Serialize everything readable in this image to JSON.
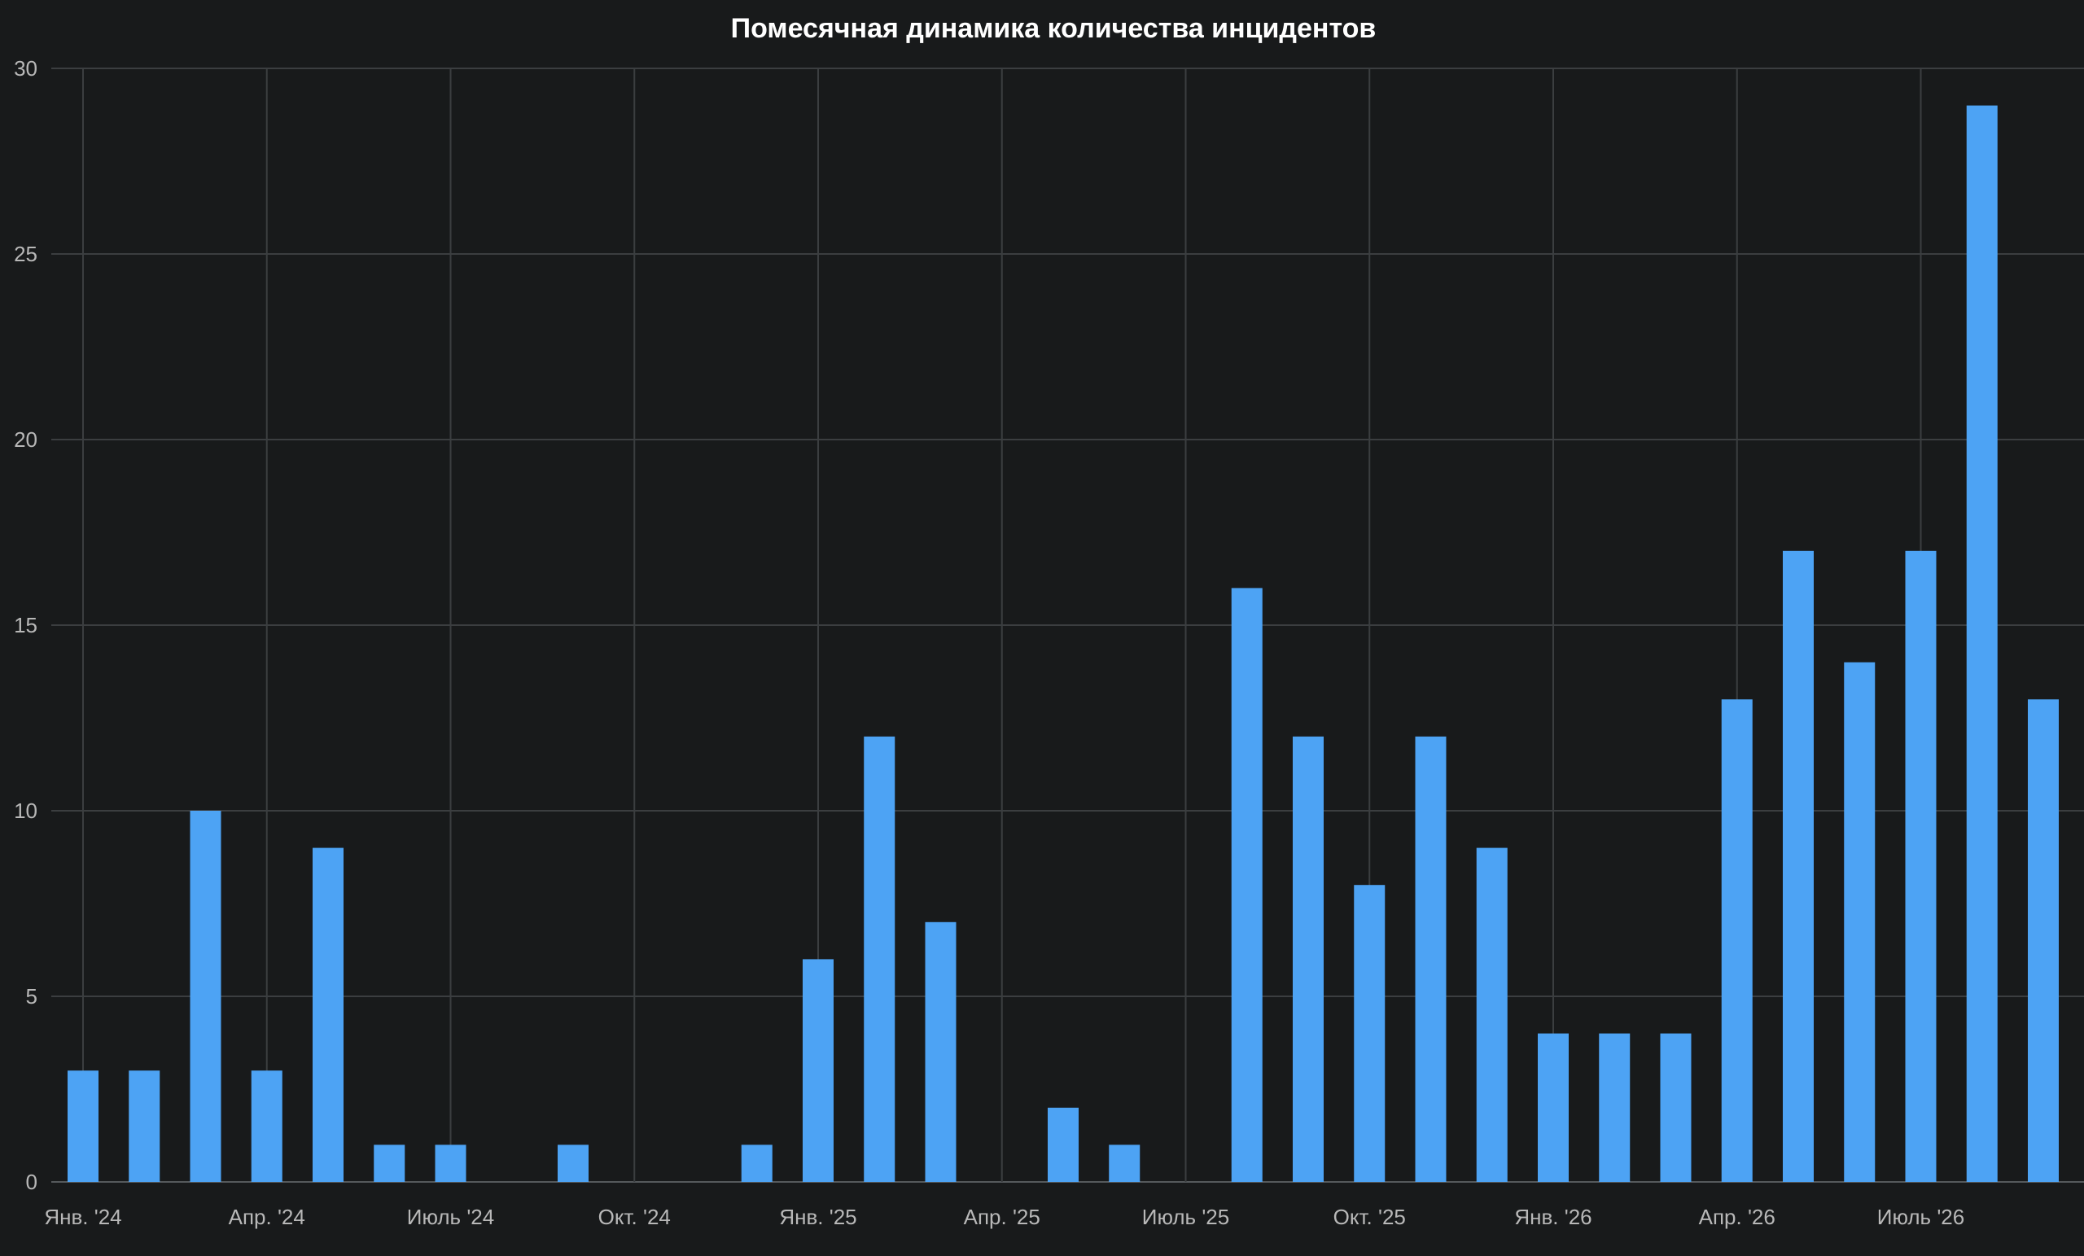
{
  "chart_data": {
    "type": "bar",
    "title": "Помесячная динамика количества инцидентов",
    "xlabel": "",
    "ylabel": "",
    "ylim": [
      0,
      30
    ],
    "y_ticks": [
      0,
      5,
      10,
      15,
      20,
      25,
      30
    ],
    "grid": true,
    "legend": "none",
    "bar_color": "#4da3f4",
    "categories": [
      "2024-01",
      "2024-02",
      "2024-03",
      "2024-04",
      "2024-05",
      "2024-06",
      "2024-07",
      "2024-08",
      "2024-09",
      "2024-10",
      "2024-11",
      "2024-12",
      "2025-01",
      "2025-02",
      "2025-03",
      "2025-04",
      "2025-05",
      "2025-06",
      "2025-07",
      "2025-08",
      "2025-09",
      "2025-10",
      "2025-11",
      "2025-12",
      "2026-01",
      "2026-02",
      "2026-03",
      "2026-04",
      "2026-05",
      "2026-06",
      "2026-07",
      "2026-08",
      "2026-09"
    ],
    "values": [
      3,
      3,
      10,
      3,
      9,
      1,
      1,
      0,
      1,
      0,
      0,
      1,
      6,
      12,
      7,
      0,
      2,
      1,
      0,
      16,
      12,
      8,
      12,
      9,
      4,
      4,
      4,
      13,
      17,
      14,
      17,
      29,
      13
    ],
    "x_ticks": [
      {
        "label": "Янв. '24",
        "month": "2024-01"
      },
      {
        "label": "Апр. '24",
        "month": "2024-04"
      },
      {
        "label": "Июль '24",
        "month": "2024-07"
      },
      {
        "label": "Окт. '24",
        "month": "2024-10"
      },
      {
        "label": "Янв. '25",
        "month": "2025-01"
      },
      {
        "label": "Апр. '25",
        "month": "2025-04"
      },
      {
        "label": "Июль '25",
        "month": "2025-07"
      },
      {
        "label": "Окт. '25",
        "month": "2025-10"
      },
      {
        "label": "Янв. '26",
        "month": "2026-01"
      },
      {
        "label": "Апр. '26",
        "month": "2026-04"
      },
      {
        "label": "Июль '26",
        "month": "2026-07"
      }
    ]
  }
}
